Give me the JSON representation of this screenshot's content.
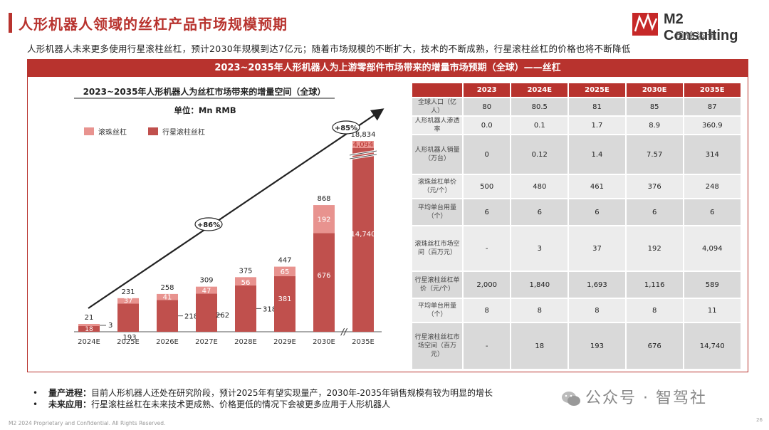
{
  "header": {
    "title": "人形机器人领域的丝杠产品市场规模预期",
    "subtitle": "人形机器人未来更多使用行星滚柱丝杠，预计2030年规模到达7亿元；随着市场规模的不断扩大，技术的不断成熟，行星滚柱丝杠的价格也将不断降低"
  },
  "logo": {
    "name": "M2 Consulting",
    "sub": "觅途咨询"
  },
  "banner": "2023~2035年人形机器人为上游零部件市场带来的增量市场预期（全球）——丝杠",
  "chart_data": {
    "type": "bar",
    "title": "2023~2035年人形机器人为丝杠市场带来的增量空间（全球）",
    "unit": "单位：Mn RMB",
    "categories": [
      "2024E",
      "2025E",
      "2026E",
      "2027E",
      "2028E",
      "2029E",
      "2030E",
      "2035E"
    ],
    "series": [
      {
        "name": "行星滚柱丝杠",
        "values": [
          18,
          193,
          218,
          262,
          318,
          381,
          676,
          14740
        ],
        "color": "#c0504d"
      },
      {
        "name": "滚珠丝杠",
        "values": [
          3,
          37,
          41,
          47,
          56,
          65,
          192,
          4094
        ],
        "color": "#e8938f"
      }
    ],
    "totals": [
      21,
      231,
      258,
      309,
      375,
      447,
      868,
      18834
    ],
    "growth_labels": [
      "+86%",
      "+85%"
    ],
    "axis_break_symbol": "//"
  },
  "table": {
    "columns": [
      "2023",
      "2024E",
      "2025E",
      "2030E",
      "2035E"
    ],
    "rows": [
      {
        "label": "全球人口（亿人）",
        "values": [
          "80",
          "80.5",
          "81",
          "85",
          "87"
        ]
      },
      {
        "label": "人形机器人渗透率",
        "values": [
          "0.0",
          "0.1",
          "1.7",
          "8.9",
          "360.9"
        ]
      },
      {
        "label": "人形机器人销量（万台）",
        "values": [
          "0",
          "0.12",
          "1.4",
          "7.57",
          "314"
        ]
      },
      {
        "label": "滚珠丝杠单价（元/个）",
        "values": [
          "500",
          "480",
          "461",
          "376",
          "248"
        ]
      },
      {
        "label": "平均单台用量（个）",
        "values": [
          "6",
          "6",
          "6",
          "6",
          "6"
        ]
      },
      {
        "label": "滚珠丝杠市场空间（百万元）",
        "values": [
          "-",
          "3",
          "37",
          "192",
          "4,094"
        ]
      },
      {
        "label": "行星滚柱丝杠单价（元/个）",
        "values": [
          "2,000",
          "1,840",
          "1,693",
          "1,116",
          "589"
        ]
      },
      {
        "label": "平均单台用量（个）",
        "values": [
          "8",
          "8",
          "8",
          "8",
          "11"
        ]
      },
      {
        "label": "行星滚柱丝杠市场空间（百万元）",
        "values": [
          "-",
          "18",
          "193",
          "676",
          "14,740"
        ]
      }
    ]
  },
  "notes": [
    {
      "label": "量产进程：",
      "text": "目前人形机器人还处在研究阶段，预计2025年有望实现量产，2030年-2035年销售规模有较为明显的增长"
    },
    {
      "label": "未来应用：",
      "text": "行星滚柱丝杠在未来技术更成熟、价格更低的情况下会被更多应用于人形机器人"
    }
  ],
  "watermark": "公众号 · 智驾社",
  "footer": "M2 2024 Proprietary and Confidential. All Rights Reserved.",
  "page_number": "26"
}
